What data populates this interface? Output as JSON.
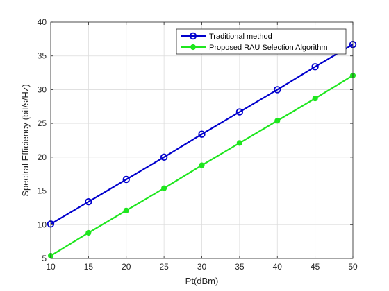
{
  "chart_data": {
    "type": "line",
    "xlabel": "Pt(dBm)",
    "ylabel": "Spectral Efficiency (bit/s/Hz)",
    "x": [
      10,
      15,
      20,
      25,
      30,
      35,
      40,
      45,
      50
    ],
    "xlim": [
      10,
      50
    ],
    "ylim": [
      5,
      40
    ],
    "xticks": [
      10,
      15,
      20,
      25,
      30,
      35,
      40,
      45,
      50
    ],
    "yticks": [
      5,
      10,
      15,
      20,
      25,
      30,
      35,
      40
    ],
    "grid": true,
    "legend_position": "top-right",
    "series": [
      {
        "name": "Traditional method",
        "color": "#0000CD",
        "marker": "circle",
        "values": [
          10.1,
          13.4,
          16.7,
          20.0,
          23.4,
          26.7,
          30.0,
          33.4,
          36.7
        ]
      },
      {
        "name": "Proposed RAU Selection  Algorithm",
        "color": "#1EE61E",
        "marker": "dot",
        "values": [
          5.4,
          8.8,
          12.1,
          15.4,
          18.8,
          22.1,
          25.4,
          28.7,
          32.1
        ]
      }
    ]
  }
}
